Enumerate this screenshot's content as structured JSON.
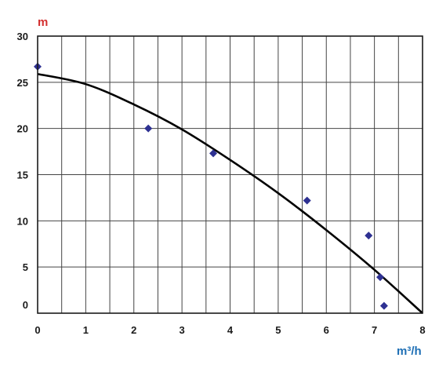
{
  "chart_data": {
    "type": "scatter",
    "xlabel": "m³/h",
    "ylabel": "m",
    "xlim": [
      0,
      8
    ],
    "ylim": [
      0,
      30
    ],
    "x_ticks": [
      "0",
      "1",
      "2",
      "3",
      "4",
      "5",
      "6",
      "7",
      "8"
    ],
    "y_ticks": [
      "0",
      "5",
      "10",
      "15",
      "20",
      "25",
      "30"
    ],
    "grid_x_step": 0.5,
    "grid_y_step": 5,
    "grid": true,
    "points": [
      {
        "x": 0,
        "y": 26.7
      },
      {
        "x": 2.3,
        "y": 20.0
      },
      {
        "x": 3.65,
        "y": 17.3
      },
      {
        "x": 5.6,
        "y": 12.2
      },
      {
        "x": 6.88,
        "y": 8.4
      },
      {
        "x": 7.12,
        "y": 3.9
      },
      {
        "x": 7.2,
        "y": 0.8
      }
    ],
    "fit_curve": {
      "x": [
        0,
        1,
        2,
        3,
        4,
        5,
        6,
        7,
        8
      ],
      "y": [
        25.9,
        24.8,
        22.6,
        19.9,
        16.6,
        13.0,
        9.0,
        4.7,
        0
      ]
    },
    "colors": {
      "marker": "#2e3192",
      "curve": "#000000",
      "ylabel": "#d32f2f",
      "xlabel": "#1e6fb5"
    }
  }
}
